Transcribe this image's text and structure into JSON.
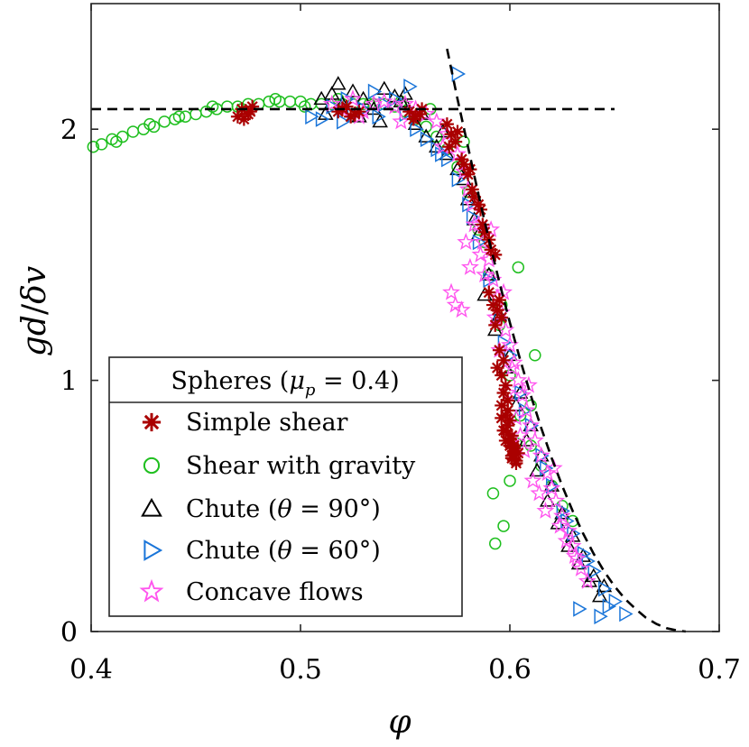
{
  "chart_data": {
    "type": "scatter",
    "title": "",
    "xlabel": "φ",
    "ylabel_parts": [
      "gd",
      "/",
      "δv"
    ],
    "xlim": [
      0.4,
      0.7
    ],
    "ylim": [
      0,
      2.5
    ],
    "xticks": [
      0.4,
      0.5,
      0.6,
      0.7
    ],
    "xtick_labels": [
      "0.4",
      "0.5",
      "0.6",
      "0.7"
    ],
    "yticks": [
      0,
      1,
      2
    ],
    "ytick_labels": [
      "0",
      "1",
      "2"
    ],
    "grid": false,
    "legend": {
      "position": "bottom-left",
      "title": "Spheres (μp = 0.4)",
      "title_parts": {
        "a": "Spheres (",
        "mu": "μ",
        "sub": "p",
        "b": " = 0.4)"
      },
      "entries": [
        {
          "key": "simple_shear",
          "label": "Simple shear"
        },
        {
          "key": "shear_gravity",
          "label": "Shear with gravity"
        },
        {
          "key": "chute90",
          "label": "Chute (θ = 90°)",
          "parts": {
            "a": "Chute (",
            "sym": "θ",
            "b": " = 90°)"
          }
        },
        {
          "key": "chute60",
          "label": "Chute (θ = 60°)",
          "parts": {
            "a": "Chute (",
            "sym": "θ",
            "b": " = 60°)"
          }
        },
        {
          "key": "concave",
          "label": "Concave flows"
        }
      ]
    },
    "reference_lines": [
      {
        "name": "plateau",
        "style": "dashed",
        "x": [
          0.4,
          0.65
        ],
        "y": [
          2.08,
          2.08
        ]
      },
      {
        "name": "decay-curve",
        "style": "dashed",
        "x": [
          0.57,
          0.575,
          0.58,
          0.585,
          0.59,
          0.595,
          0.6,
          0.605,
          0.61,
          0.615,
          0.62,
          0.625,
          0.63,
          0.635,
          0.64,
          0.645,
          0.65,
          0.655,
          0.66,
          0.665,
          0.67,
          0.675,
          0.68,
          0.684
        ],
        "y": [
          2.32,
          2.12,
          1.93,
          1.74,
          1.56,
          1.39,
          1.23,
          1.08,
          0.94,
          0.81,
          0.69,
          0.58,
          0.48,
          0.39,
          0.31,
          0.24,
          0.18,
          0.13,
          0.09,
          0.055,
          0.03,
          0.013,
          0.004,
          0.0
        ]
      }
    ],
    "series": [
      {
        "key": "shear_gravity",
        "name": "Shear with gravity",
        "marker": "circle",
        "color": "#1fbf1f",
        "x": [
          0.401,
          0.405,
          0.41,
          0.415,
          0.42,
          0.425,
          0.43,
          0.435,
          0.44,
          0.445,
          0.45,
          0.455,
          0.46,
          0.465,
          0.47,
          0.475,
          0.48,
          0.485,
          0.49,
          0.495,
          0.5,
          0.505,
          0.51,
          0.515,
          0.52,
          0.525,
          0.53,
          0.535,
          0.54,
          0.545,
          0.55,
          0.555,
          0.56,
          0.565,
          0.57,
          0.575,
          0.58,
          0.585,
          0.59,
          0.595,
          0.6,
          0.605,
          0.61,
          0.615,
          0.62,
          0.625,
          0.63,
          0.412,
          0.428,
          0.442,
          0.458,
          0.472,
          0.488,
          0.502,
          0.518,
          0.533,
          0.548,
          0.562,
          0.578,
          0.588,
          0.596,
          0.604,
          0.612,
          0.592,
          0.597,
          0.6,
          0.593,
          0.603,
          0.61
        ],
        "y": [
          1.93,
          1.94,
          1.96,
          1.97,
          1.99,
          2.0,
          2.01,
          2.03,
          2.04,
          2.05,
          2.06,
          2.07,
          2.08,
          2.09,
          2.09,
          2.1,
          2.1,
          2.11,
          2.11,
          2.11,
          2.11,
          2.1,
          2.1,
          2.1,
          2.1,
          2.1,
          2.1,
          2.1,
          2.1,
          2.09,
          2.07,
          2.04,
          2.01,
          1.97,
          1.92,
          1.85,
          1.75,
          1.6,
          1.42,
          1.22,
          1.02,
          0.86,
          0.74,
          0.66,
          0.58,
          0.5,
          0.44,
          1.95,
          2.02,
          2.05,
          2.09,
          2.08,
          2.12,
          2.09,
          2.12,
          2.1,
          2.11,
          2.08,
          1.95,
          1.55,
          1.3,
          1.45,
          1.1,
          0.55,
          0.42,
          0.6,
          0.35,
          0.75,
          0.9
        ]
      },
      {
        "key": "chute90",
        "name": "Chute (θ = 90°)",
        "marker": "triangle-up",
        "color": "#000000",
        "x": [
          0.51,
          0.515,
          0.52,
          0.525,
          0.53,
          0.535,
          0.54,
          0.545,
          0.55,
          0.555,
          0.56,
          0.565,
          0.57,
          0.575,
          0.58,
          0.585,
          0.59,
          0.595,
          0.6,
          0.605,
          0.61,
          0.615,
          0.62,
          0.625,
          0.63,
          0.635,
          0.64,
          0.645,
          0.518,
          0.528,
          0.538,
          0.548,
          0.558,
          0.568,
          0.578,
          0.583,
          0.588,
          0.593,
          0.598,
          0.603,
          0.608,
          0.613,
          0.618,
          0.623,
          0.628,
          0.633,
          0.638,
          0.643,
          0.512,
          0.55
        ],
        "y": [
          2.12,
          2.14,
          2.1,
          2.15,
          2.12,
          2.08,
          2.16,
          2.13,
          2.1,
          2.02,
          1.97,
          1.93,
          1.9,
          1.84,
          1.72,
          1.58,
          1.42,
          1.26,
          1.1,
          0.95,
          0.82,
          0.7,
          0.58,
          0.47,
          0.38,
          0.3,
          0.22,
          0.18,
          2.18,
          2.05,
          2.03,
          2.11,
          2.06,
          1.99,
          1.8,
          1.64,
          1.34,
          1.2,
          1.05,
          0.9,
          0.76,
          0.64,
          0.52,
          0.43,
          0.34,
          0.27,
          0.2,
          0.14,
          2.06,
          2.14
        ]
      },
      {
        "key": "chute60",
        "name": "Chute (θ = 60°)",
        "marker": "triangle-right",
        "color": "#1a75d9",
        "x": [
          0.505,
          0.51,
          0.515,
          0.52,
          0.525,
          0.53,
          0.535,
          0.54,
          0.545,
          0.55,
          0.555,
          0.56,
          0.565,
          0.57,
          0.575,
          0.58,
          0.585,
          0.59,
          0.595,
          0.6,
          0.605,
          0.61,
          0.615,
          0.62,
          0.625,
          0.63,
          0.635,
          0.64,
          0.645,
          0.65,
          0.655,
          0.522,
          0.537,
          0.552,
          0.567,
          0.582,
          0.597,
          0.607,
          0.617,
          0.627,
          0.637,
          0.647,
          0.633,
          0.643,
          0.575
        ],
        "y": [
          2.05,
          2.04,
          2.09,
          2.03,
          2.06,
          2.08,
          2.15,
          2.1,
          2.12,
          2.06,
          2.0,
          1.96,
          1.92,
          1.88,
          1.8,
          1.7,
          1.55,
          1.4,
          1.25,
          1.1,
          0.95,
          0.82,
          0.7,
          0.58,
          0.48,
          0.39,
          0.31,
          0.24,
          0.17,
          0.12,
          0.07,
          2.12,
          2.05,
          2.17,
          1.9,
          1.65,
          1.15,
          0.88,
          0.65,
          0.44,
          0.28,
          0.1,
          0.09,
          0.06,
          2.22
        ]
      },
      {
        "key": "concave",
        "name": "Concave flows",
        "marker": "pentagram",
        "color": "#ff55ee",
        "x": [
          0.515,
          0.52,
          0.525,
          0.53,
          0.535,
          0.54,
          0.545,
          0.55,
          0.555,
          0.56,
          0.565,
          0.57,
          0.575,
          0.578,
          0.58,
          0.582,
          0.585,
          0.587,
          0.59,
          0.592,
          0.594,
          0.596,
          0.598,
          0.6,
          0.602,
          0.604,
          0.606,
          0.608,
          0.61,
          0.612,
          0.615,
          0.618,
          0.62,
          0.622,
          0.625,
          0.628,
          0.63,
          0.632,
          0.572,
          0.574,
          0.577,
          0.579,
          0.581,
          0.583,
          0.586,
          0.588,
          0.591,
          0.593,
          0.595,
          0.597,
          0.599,
          0.601,
          0.603,
          0.605,
          0.607,
          0.609,
          0.611,
          0.614,
          0.617,
          0.621,
          0.624,
          0.627,
          0.631,
          0.634,
          0.637,
          0.528,
          0.548,
          0.568
        ],
        "y": [
          2.1,
          2.08,
          2.12,
          2.07,
          2.1,
          2.11,
          2.09,
          2.1,
          2.08,
          2.06,
          2.03,
          1.98,
          1.9,
          1.83,
          1.76,
          1.7,
          1.62,
          1.55,
          1.48,
          1.4,
          1.33,
          1.27,
          1.2,
          1.14,
          1.07,
          1.0,
          0.94,
          0.88,
          0.82,
          0.76,
          0.7,
          0.63,
          0.57,
          0.52,
          0.46,
          0.4,
          0.34,
          0.29,
          1.35,
          1.3,
          1.28,
          1.55,
          1.45,
          1.62,
          1.5,
          1.42,
          1.6,
          1.25,
          1.12,
          1.35,
          0.95,
          1.05,
          0.85,
          0.78,
          0.72,
          0.98,
          0.6,
          0.55,
          0.48,
          0.65,
          0.42,
          0.36,
          0.3,
          0.25,
          0.2,
          2.05,
          2.03,
          1.93
        ]
      },
      {
        "key": "simple_shear",
        "name": "Simple shear",
        "marker": "asterisk",
        "color": "#aa0000",
        "x": [
          0.47,
          0.472,
          0.475,
          0.477,
          0.473,
          0.476,
          0.518,
          0.522,
          0.526,
          0.52,
          0.524,
          0.528,
          0.552,
          0.555,
          0.558,
          0.554,
          0.557,
          0.57,
          0.572,
          0.574,
          0.571,
          0.575,
          0.578,
          0.58,
          0.577,
          0.581,
          0.583,
          0.585,
          0.582,
          0.586,
          0.588,
          0.59,
          0.587,
          0.591,
          0.593,
          0.59,
          0.592,
          0.594,
          0.596,
          0.593,
          0.595,
          0.597,
          0.594,
          0.596,
          0.598,
          0.595,
          0.597,
          0.599,
          0.596,
          0.598,
          0.6,
          0.597,
          0.599,
          0.601,
          0.598,
          0.6,
          0.602,
          0.599,
          0.601,
          0.603,
          0.6,
          0.602,
          0.604,
          0.601,
          0.603,
          0.596,
          0.598,
          0.6,
          0.602
        ],
        "y": [
          2.05,
          2.08,
          2.06,
          2.09,
          2.04,
          2.07,
          2.07,
          2.09,
          2.06,
          2.08,
          2.05,
          2.07,
          2.07,
          2.05,
          2.08,
          2.04,
          2.06,
          2.02,
          1.98,
          1.95,
          1.93,
          1.99,
          1.86,
          1.82,
          1.88,
          1.84,
          1.73,
          1.7,
          1.76,
          1.68,
          1.59,
          1.56,
          1.62,
          1.52,
          1.5,
          1.35,
          1.3,
          1.28,
          1.25,
          1.22,
          1.32,
          1.08,
          1.05,
          1.02,
          0.98,
          1.12,
          0.95,
          0.92,
          0.9,
          0.86,
          0.84,
          0.8,
          0.82,
          0.78,
          0.76,
          0.74,
          0.72,
          0.88,
          0.7,
          0.68,
          0.75,
          0.73,
          0.71,
          0.69,
          0.67,
          0.85,
          0.8,
          0.77,
          0.74
        ]
      }
    ]
  }
}
